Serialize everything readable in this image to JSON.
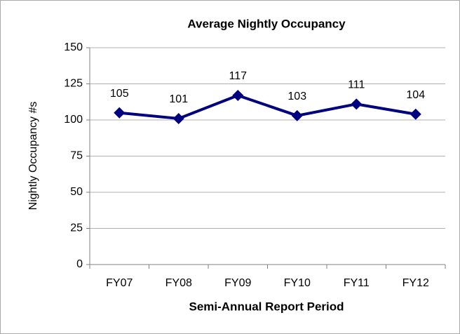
{
  "chart_data": {
    "type": "line",
    "title": "Average Nightly Occupancy",
    "x_label": "Semi-Annual Report Period",
    "y_label": "Nightly Occupancy #s",
    "categories": [
      "FY07",
      "FY08",
      "FY09",
      "FY10",
      "FY11",
      "FY12"
    ],
    "series": [
      {
        "name": "Average Nightly Occupancy",
        "color": "#000080",
        "values": [
          105,
          101,
          117,
          103,
          111,
          104
        ]
      }
    ],
    "ylim": [
      0,
      150
    ],
    "yticks": [
      0,
      25,
      50,
      75,
      100,
      125,
      150
    ],
    "grid": true
  }
}
